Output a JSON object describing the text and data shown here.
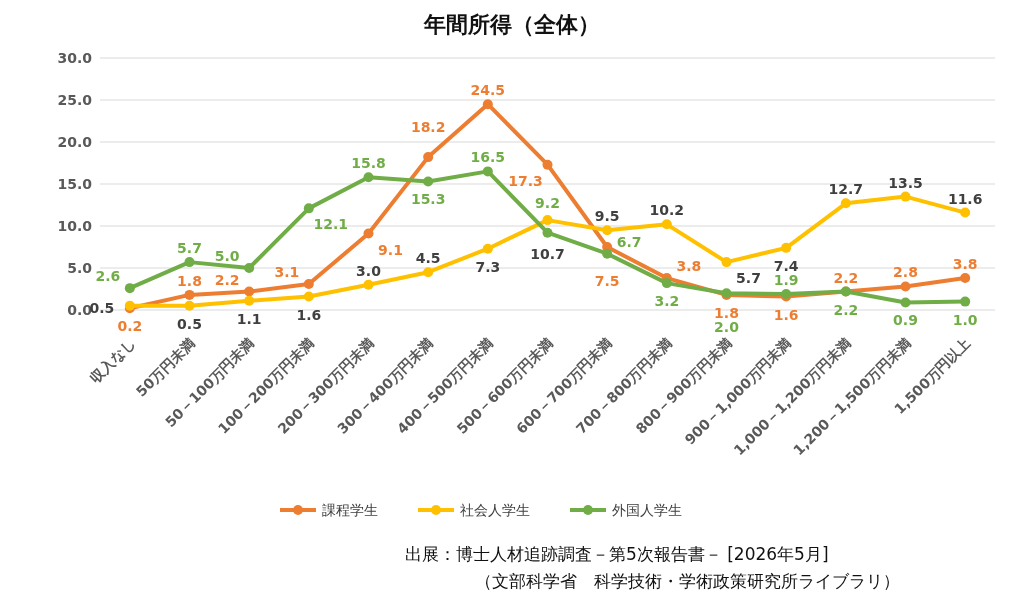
{
  "chart_data": {
    "type": "line",
    "title": "年間所得（全体）",
    "categories": [
      "収入なし",
      "50万円未満",
      "50－100万円未満",
      "100－200万円未満",
      "200－300万円未満",
      "300－400万円未満",
      "400－500万円未満",
      "500－600万円未満",
      "600－700万円未満",
      "700－800万円未満",
      "800－900万円未満",
      "900－1,000万円未満",
      "1,000－1,200万円未満",
      "1,200－1,500万円未満",
      "1,500万円以上"
    ],
    "series": [
      {
        "name": "課程学生",
        "color": "#ed7d31",
        "values": [
          0.2,
          1.8,
          2.2,
          3.1,
          9.1,
          18.2,
          24.5,
          17.3,
          7.5,
          3.8,
          1.8,
          1.6,
          2.2,
          2.8,
          3.8
        ],
        "value_labels": [
          "0.2",
          "1.8",
          "2.2",
          "3.1",
          "9.1",
          "18.2",
          "24.5",
          "17.3",
          "7.5",
          "3.8",
          "1.8",
          "1.6",
          "2.2",
          "2.8",
          "3.8"
        ]
      },
      {
        "name": "社会人学生",
        "color": "#ffc000",
        "values": [
          0.5,
          0.5,
          1.1,
          1.6,
          3.0,
          4.5,
          7.3,
          10.7,
          9.5,
          10.2,
          5.7,
          7.4,
          12.7,
          13.5,
          11.6
        ],
        "value_labels": [
          "0.5",
          "0.5",
          "1.1",
          "1.6",
          "3.0",
          "4.5",
          "7.3",
          "10.7",
          "9.5",
          "10.2",
          "5.7",
          "7.4",
          "12.7",
          "13.5",
          "11.6"
        ]
      },
      {
        "name": "外国人学生",
        "color": "#70ad47",
        "values": [
          2.6,
          5.7,
          5.0,
          12.1,
          15.8,
          15.3,
          16.5,
          9.2,
          6.7,
          3.2,
          2.0,
          1.9,
          2.2,
          0.9,
          1.0
        ],
        "value_labels": [
          "2.6",
          "5.7",
          "5.0",
          "12.1",
          "15.8",
          "15.3",
          "16.5",
          "9.2",
          "6.7",
          "3.2",
          "2.0",
          "1.9",
          "2.2",
          "0.9",
          "1.0"
        ]
      }
    ],
    "ylim": [
      0,
      30
    ],
    "yticks": [
      {
        "value": 0,
        "label": "0.0"
      },
      {
        "value": 5,
        "label": "5.0"
      },
      {
        "value": 10,
        "label": "10.0"
      },
      {
        "value": 15,
        "label": "15.0"
      },
      {
        "value": 20,
        "label": "20.0"
      },
      {
        "value": 25,
        "label": "25.0"
      },
      {
        "value": 30,
        "label": "30.0"
      }
    ],
    "grid": "y",
    "legend": "bottom",
    "marker": "circle",
    "line_style": "solid",
    "annotations": [
      "出展：博士人材追跡調査－第5次報告書－ [2026年5月]",
      "（文部科学省　科学技術・学術政策研究所ライブラリ）"
    ]
  }
}
